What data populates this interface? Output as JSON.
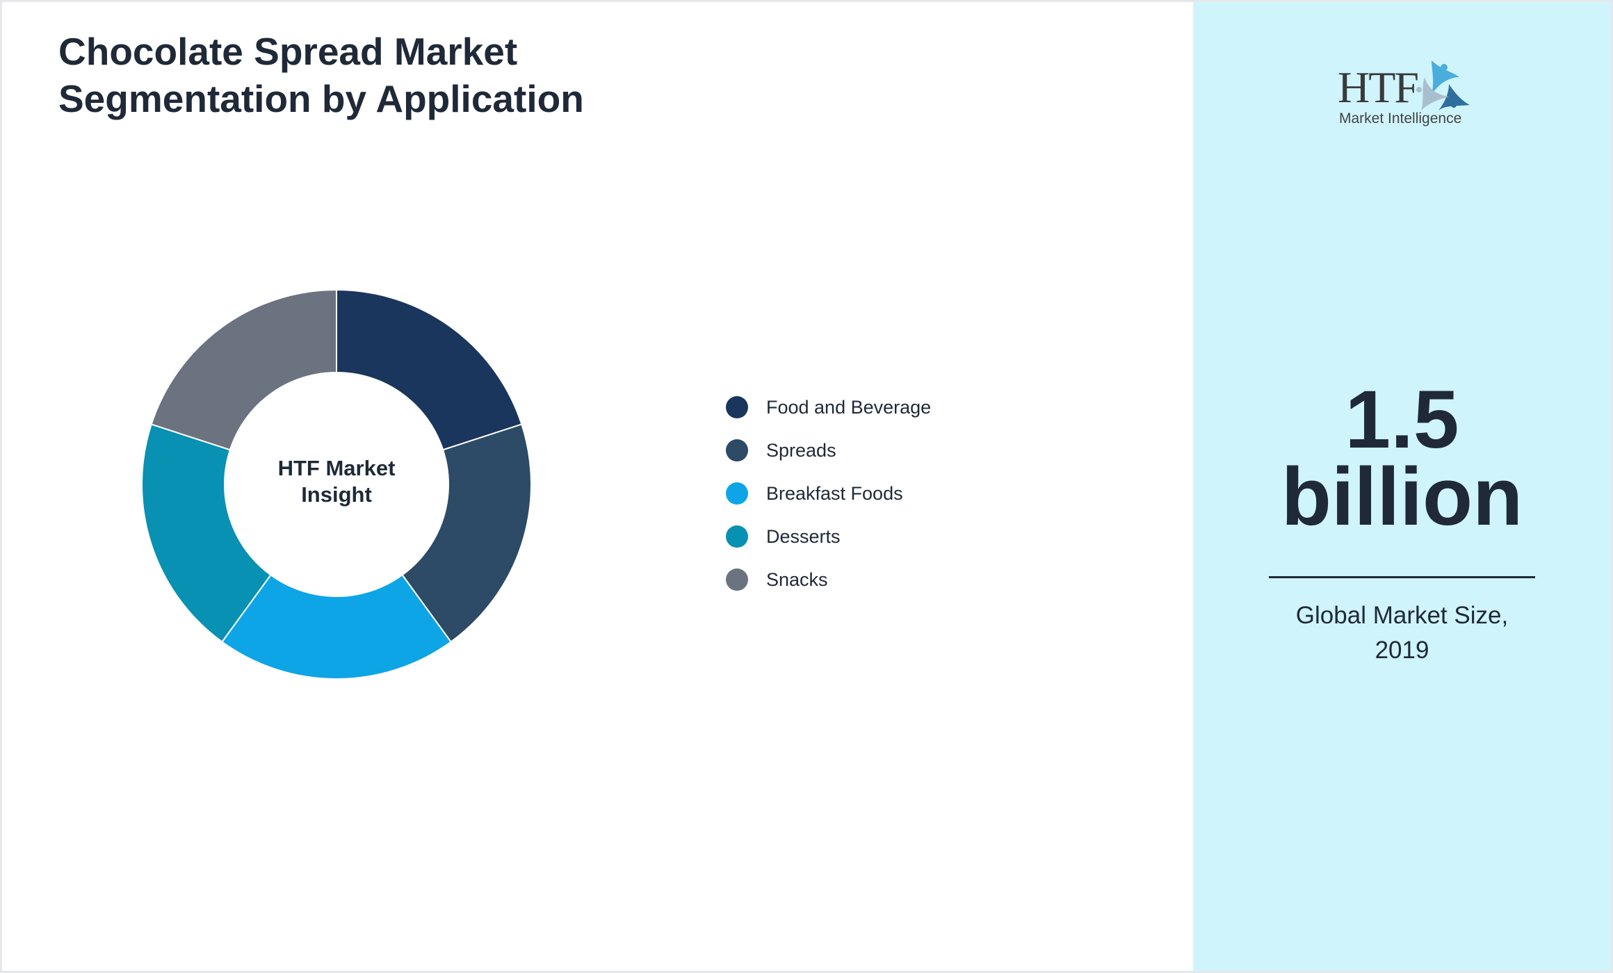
{
  "title_line1": "Chocolate Spread Market",
  "title_line2": "Segmentation by Application",
  "center_label_line1": "HTF Market",
  "center_label_line2": "Insight",
  "chart_data": {
    "type": "pie",
    "variant": "donut",
    "title": "Chocolate Spread Market Segmentation by Application",
    "categories": [
      "Food and Beverage",
      "Spreads",
      "Breakfast Foods",
      "Desserts",
      "Snacks"
    ],
    "values": [
      20,
      20,
      20,
      20,
      20
    ],
    "colors": [
      "#1b365d",
      "#2d4a66",
      "#0ea5e6",
      "#0891b2",
      "#6b7280"
    ],
    "legend_position": "right"
  },
  "logo": {
    "text": "HTF",
    "subtext": "Market Intelligence"
  },
  "market_size": {
    "value": "1.5",
    "unit": "billion",
    "label_line1": "Global Market Size,",
    "label_line2": "2019"
  },
  "colors": {
    "panel_bg": "#cff4fc",
    "text": "#1f2937"
  }
}
